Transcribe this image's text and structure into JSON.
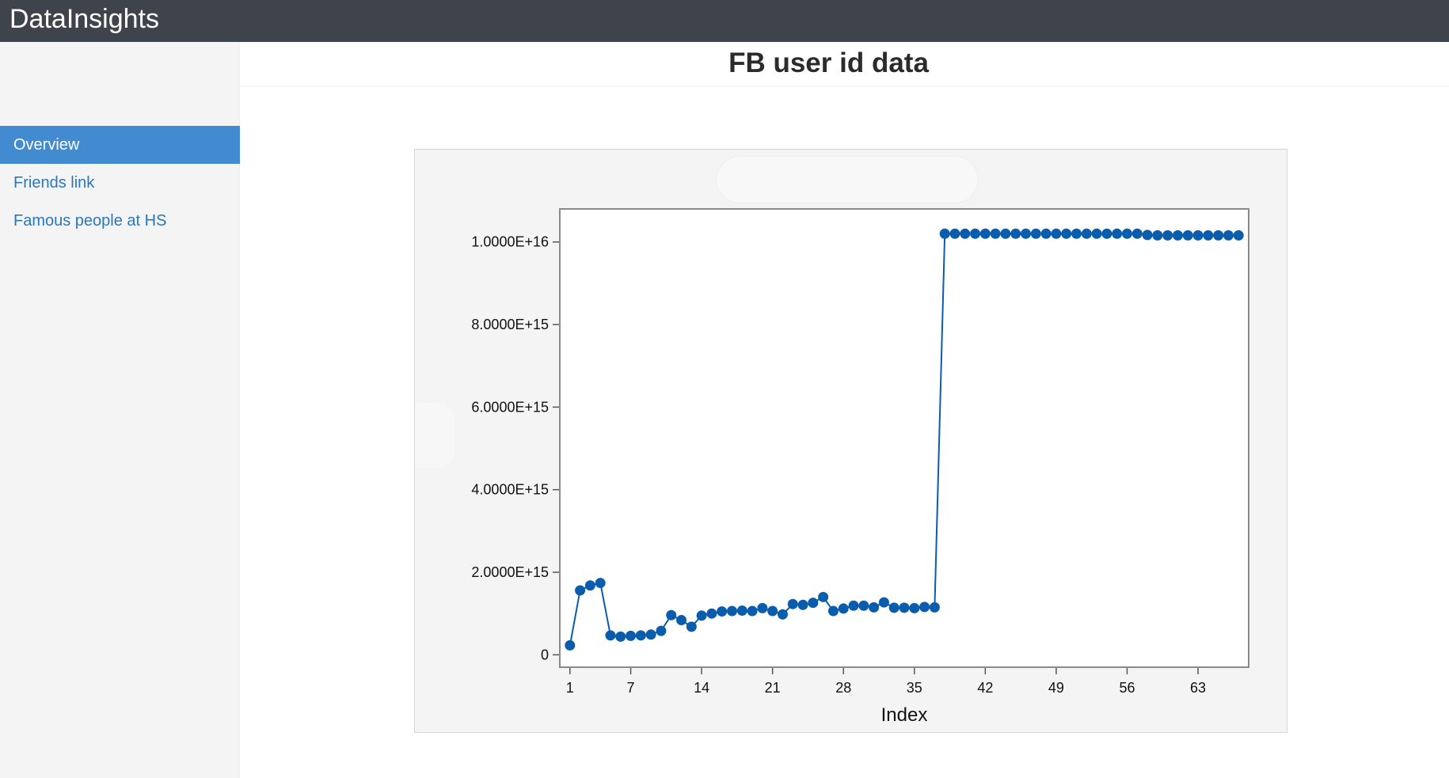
{
  "app": {
    "title": "DataInsights"
  },
  "sidebar": {
    "items": [
      {
        "label": "Overview",
        "active": true
      },
      {
        "label": "Friends link",
        "active": false
      },
      {
        "label": "Famous people at HS",
        "active": false
      }
    ]
  },
  "main": {
    "title": "FB user id data"
  },
  "colors": {
    "topbar": "#3f434b",
    "accent": "#428bd1",
    "link": "#2a76bf",
    "series": "#0a5cad"
  },
  "chart_data": {
    "type": "line",
    "title": "",
    "xlabel": "Index",
    "ylabel": "",
    "xlim": [
      0,
      68
    ],
    "ylim": [
      -300000000000000,
      10800000000000000
    ],
    "xticks": [
      1,
      7,
      14,
      21,
      28,
      35,
      42,
      49,
      56,
      63
    ],
    "xtick_labels": [
      "1",
      "7",
      "14",
      "21",
      "28",
      "35",
      "42",
      "49",
      "56",
      "63"
    ],
    "yticks": [
      0,
      2000000000000000,
      4000000000000000,
      6000000000000000,
      8000000000000000,
      10000000000000000
    ],
    "ytick_labels": [
      "0",
      "2.0000E+15",
      "4.0000E+15",
      "6.0000E+15",
      "8.0000E+15",
      "1.0000E+16"
    ],
    "grid": false,
    "markers": true,
    "x": [
      1,
      2,
      3,
      4,
      5,
      6,
      7,
      8,
      9,
      10,
      11,
      12,
      13,
      14,
      15,
      16,
      17,
      18,
      19,
      20,
      21,
      22,
      23,
      24,
      25,
      26,
      27,
      28,
      29,
      30,
      31,
      32,
      33,
      34,
      35,
      36,
      37,
      38,
      39,
      40,
      41,
      42,
      43,
      44,
      45,
      46,
      47,
      48,
      49,
      50,
      51,
      52,
      53,
      54,
      55,
      56,
      57,
      58,
      59,
      60,
      61,
      62,
      63,
      64,
      65,
      66,
      67
    ],
    "values": [
      230000000000000,
      1560000000000000,
      1680000000000000,
      1740000000000000,
      470000000000000,
      440000000000000,
      460000000000000,
      470000000000000,
      490000000000000,
      580000000000000,
      960000000000000,
      840000000000000,
      680000000000000,
      950000000000000,
      1000000000000000,
      1050000000000000,
      1060000000000000,
      1070000000000000,
      1060000000000000,
      1130000000000000,
      1060000000000000,
      980000000000000,
      1230000000000000,
      1210000000000000,
      1260000000000000,
      1400000000000000,
      1060000000000000,
      1120000000000000,
      1190000000000000,
      1190000000000000,
      1150000000000000,
      1270000000000000,
      1140000000000000,
      1140000000000000,
      1130000000000000,
      1160000000000000,
      1150000000000000,
      10200000000000000,
      10200000000000000,
      10200000000000000,
      10200000000000000,
      10200000000000000,
      10200000000000000,
      10200000000000000,
      10200000000000000,
      10200000000000000,
      10200000000000000,
      10200000000000000,
      10200000000000000,
      10200000000000000,
      10200000000000000,
      10200000000000000,
      10200000000000000,
      10200000000000000,
      10200000000000000,
      10200000000000000,
      10200000000000000,
      10170000000000000,
      10160000000000000,
      10160000000000000,
      10160000000000000,
      10160000000000000,
      10160000000000000,
      10160000000000000,
      10160000000000000,
      10160000000000000,
      10160000000000000
    ]
  }
}
